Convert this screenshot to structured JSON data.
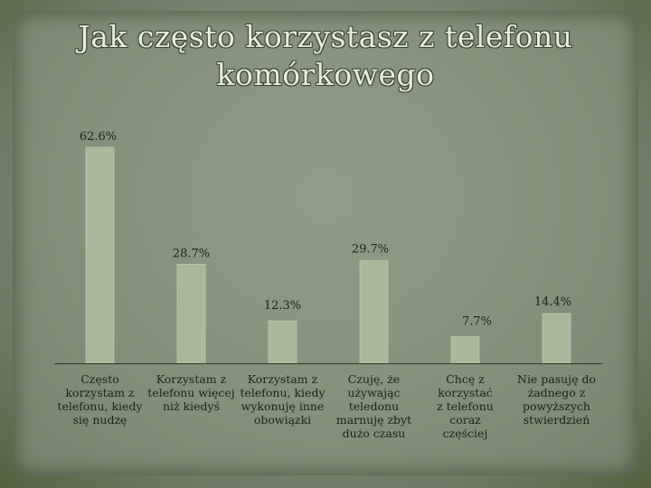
{
  "title_line1": "Jak często korzystasz z telefonu",
  "title_line2": "komórkowego",
  "colors": {
    "bar": "#a9b898",
    "bar_edge": "#c8d4bb",
    "axis": "#2f3626",
    "label": "#1c2015"
  },
  "chart_data": {
    "type": "bar",
    "title": "Jak często korzystasz z telefonu komórkowego",
    "categories": [
      [
        "Często",
        "korzystam z",
        "telefonu, kiedy",
        "się nudzę"
      ],
      [
        "Korzystam z",
        "telefonu więcej",
        "niż kiedyś"
      ],
      [
        "Korzystam z",
        "telefonu, kiedy",
        "wykonuję inne",
        "obowiązki"
      ],
      [
        "Czuję, że",
        "używając",
        "teledonu",
        "marnuję zbyt",
        "dużo czasu"
      ],
      [
        "Chcę z korzystać",
        "z telefonu coraz",
        "częściej"
      ],
      [
        "Nie pasuję do",
        "żadnego z",
        "powyższych",
        "stwierdzień"
      ]
    ],
    "values": [
      62.6,
      28.7,
      12.3,
      29.7,
      7.7,
      14.4
    ],
    "value_labels": [
      "62.6%",
      "28.7%",
      "12.3%",
      "29.7%",
      "7.7%",
      "14.4%"
    ],
    "ylim": [
      0,
      62.6
    ],
    "grid": false,
    "legend": "none"
  }
}
